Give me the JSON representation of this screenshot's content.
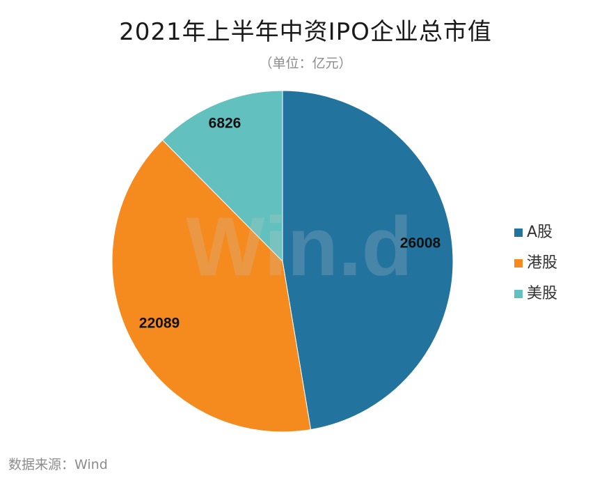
{
  "chart_data": {
    "type": "pie",
    "title": "2021年上半年中资IPO企业总市值",
    "subtitle": "（单位：亿元）",
    "categories": [
      "A股",
      "港股",
      "美股"
    ],
    "values": [
      26008,
      22089,
      6826
    ],
    "data_labels": [
      "26008",
      "22089",
      "6826"
    ],
    "legend": {
      "position": "right",
      "entries": [
        "A股",
        "港股",
        "美股"
      ]
    },
    "colors": [
      "#23739f",
      "#f58a1f",
      "#62c0be"
    ],
    "watermark": "Win.d",
    "source": "数据来源：Wind"
  }
}
